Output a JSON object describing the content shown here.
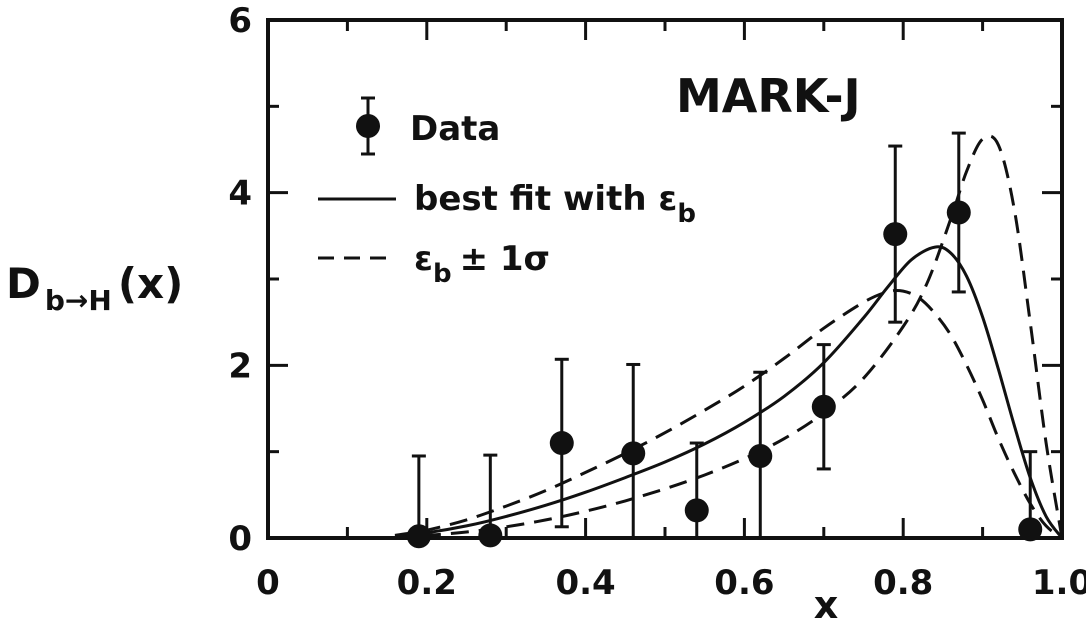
{
  "chart_data": {
    "type": "scatter",
    "title": "",
    "annotation": "MARK-J",
    "xlabel": "x",
    "ylabel": {
      "main": "D",
      "subscript": "b→H",
      "suffix": "(x)"
    },
    "xlim": [
      0,
      1.0
    ],
    "ylim": [
      0,
      6
    ],
    "xticks": [
      0,
      0.2,
      0.4,
      0.6,
      0.8,
      1.0
    ],
    "xtick_labels": [
      "0",
      "0.2",
      "0.4",
      "0.6",
      "0.8",
      "1.0"
    ],
    "yticks": [
      0,
      2,
      4,
      6
    ],
    "ytick_labels": [
      "0",
      "2",
      "4",
      "6"
    ],
    "grid": false,
    "legend": {
      "placement": "top-left",
      "entries": [
        {
          "marker": "filled-circle-errorbar",
          "label": "Data"
        },
        {
          "marker": "solid-line",
          "label": "best fit with ε",
          "subscript": "b"
        },
        {
          "marker": "dashed-line",
          "label": "ε",
          "subscript": "b",
          "suffix": "± 1σ"
        }
      ]
    },
    "series": [
      {
        "name": "Data",
        "kind": "points",
        "x": [
          0.19,
          0.28,
          0.37,
          0.46,
          0.54,
          0.62,
          0.7,
          0.79,
          0.87,
          0.96
        ],
        "y": [
          0.02,
          0.03,
          1.1,
          0.98,
          0.32,
          0.95,
          1.52,
          3.52,
          3.77,
          0.1
        ],
        "err": [
          0.93,
          0.93,
          0.97,
          1.03,
          0.78,
          0.97,
          0.72,
          1.02,
          0.92,
          0.9
        ]
      },
      {
        "name": "best fit with εb",
        "kind": "solid-line",
        "x": [
          0.16,
          0.2,
          0.25,
          0.3,
          0.35,
          0.4,
          0.45,
          0.5,
          0.55,
          0.6,
          0.65,
          0.7,
          0.75,
          0.78,
          0.81,
          0.84,
          0.86,
          0.88,
          0.9,
          0.92,
          0.94,
          0.96,
          0.98,
          1.0
        ],
        "y": [
          0.02,
          0.06,
          0.14,
          0.25,
          0.38,
          0.53,
          0.7,
          0.88,
          1.09,
          1.34,
          1.64,
          2.03,
          2.55,
          2.9,
          3.22,
          3.37,
          3.3,
          3.03,
          2.56,
          1.95,
          1.3,
          0.7,
          0.25,
          0.0
        ]
      },
      {
        "name": "εb + 1σ",
        "kind": "dashed-line",
        "x": [
          0.16,
          0.2,
          0.25,
          0.3,
          0.35,
          0.4,
          0.45,
          0.5,
          0.55,
          0.6,
          0.65,
          0.7,
          0.75,
          0.8,
          0.83,
          0.86,
          0.88,
          0.9,
          0.92,
          0.94,
          0.96,
          0.98,
          1.0
        ],
        "y": [
          0.01,
          0.03,
          0.07,
          0.13,
          0.21,
          0.31,
          0.43,
          0.57,
          0.73,
          0.92,
          1.15,
          1.45,
          1.85,
          2.45,
          2.95,
          3.7,
          4.25,
          4.62,
          4.55,
          3.8,
          2.5,
          1.1,
          0.0
        ]
      },
      {
        "name": "εb - 1σ",
        "kind": "dashed-line",
        "x": [
          0.16,
          0.2,
          0.25,
          0.3,
          0.35,
          0.4,
          0.45,
          0.5,
          0.55,
          0.6,
          0.65,
          0.7,
          0.75,
          0.78,
          0.8,
          0.82,
          0.84,
          0.86,
          0.88,
          0.9,
          0.92,
          0.94,
          0.96,
          0.98,
          1.0
        ],
        "y": [
          0.03,
          0.09,
          0.21,
          0.37,
          0.55,
          0.76,
          0.98,
          1.22,
          1.48,
          1.76,
          2.08,
          2.43,
          2.73,
          2.85,
          2.86,
          2.78,
          2.6,
          2.35,
          2.0,
          1.6,
          1.15,
          0.75,
          0.4,
          0.14,
          0.0
        ]
      }
    ]
  }
}
